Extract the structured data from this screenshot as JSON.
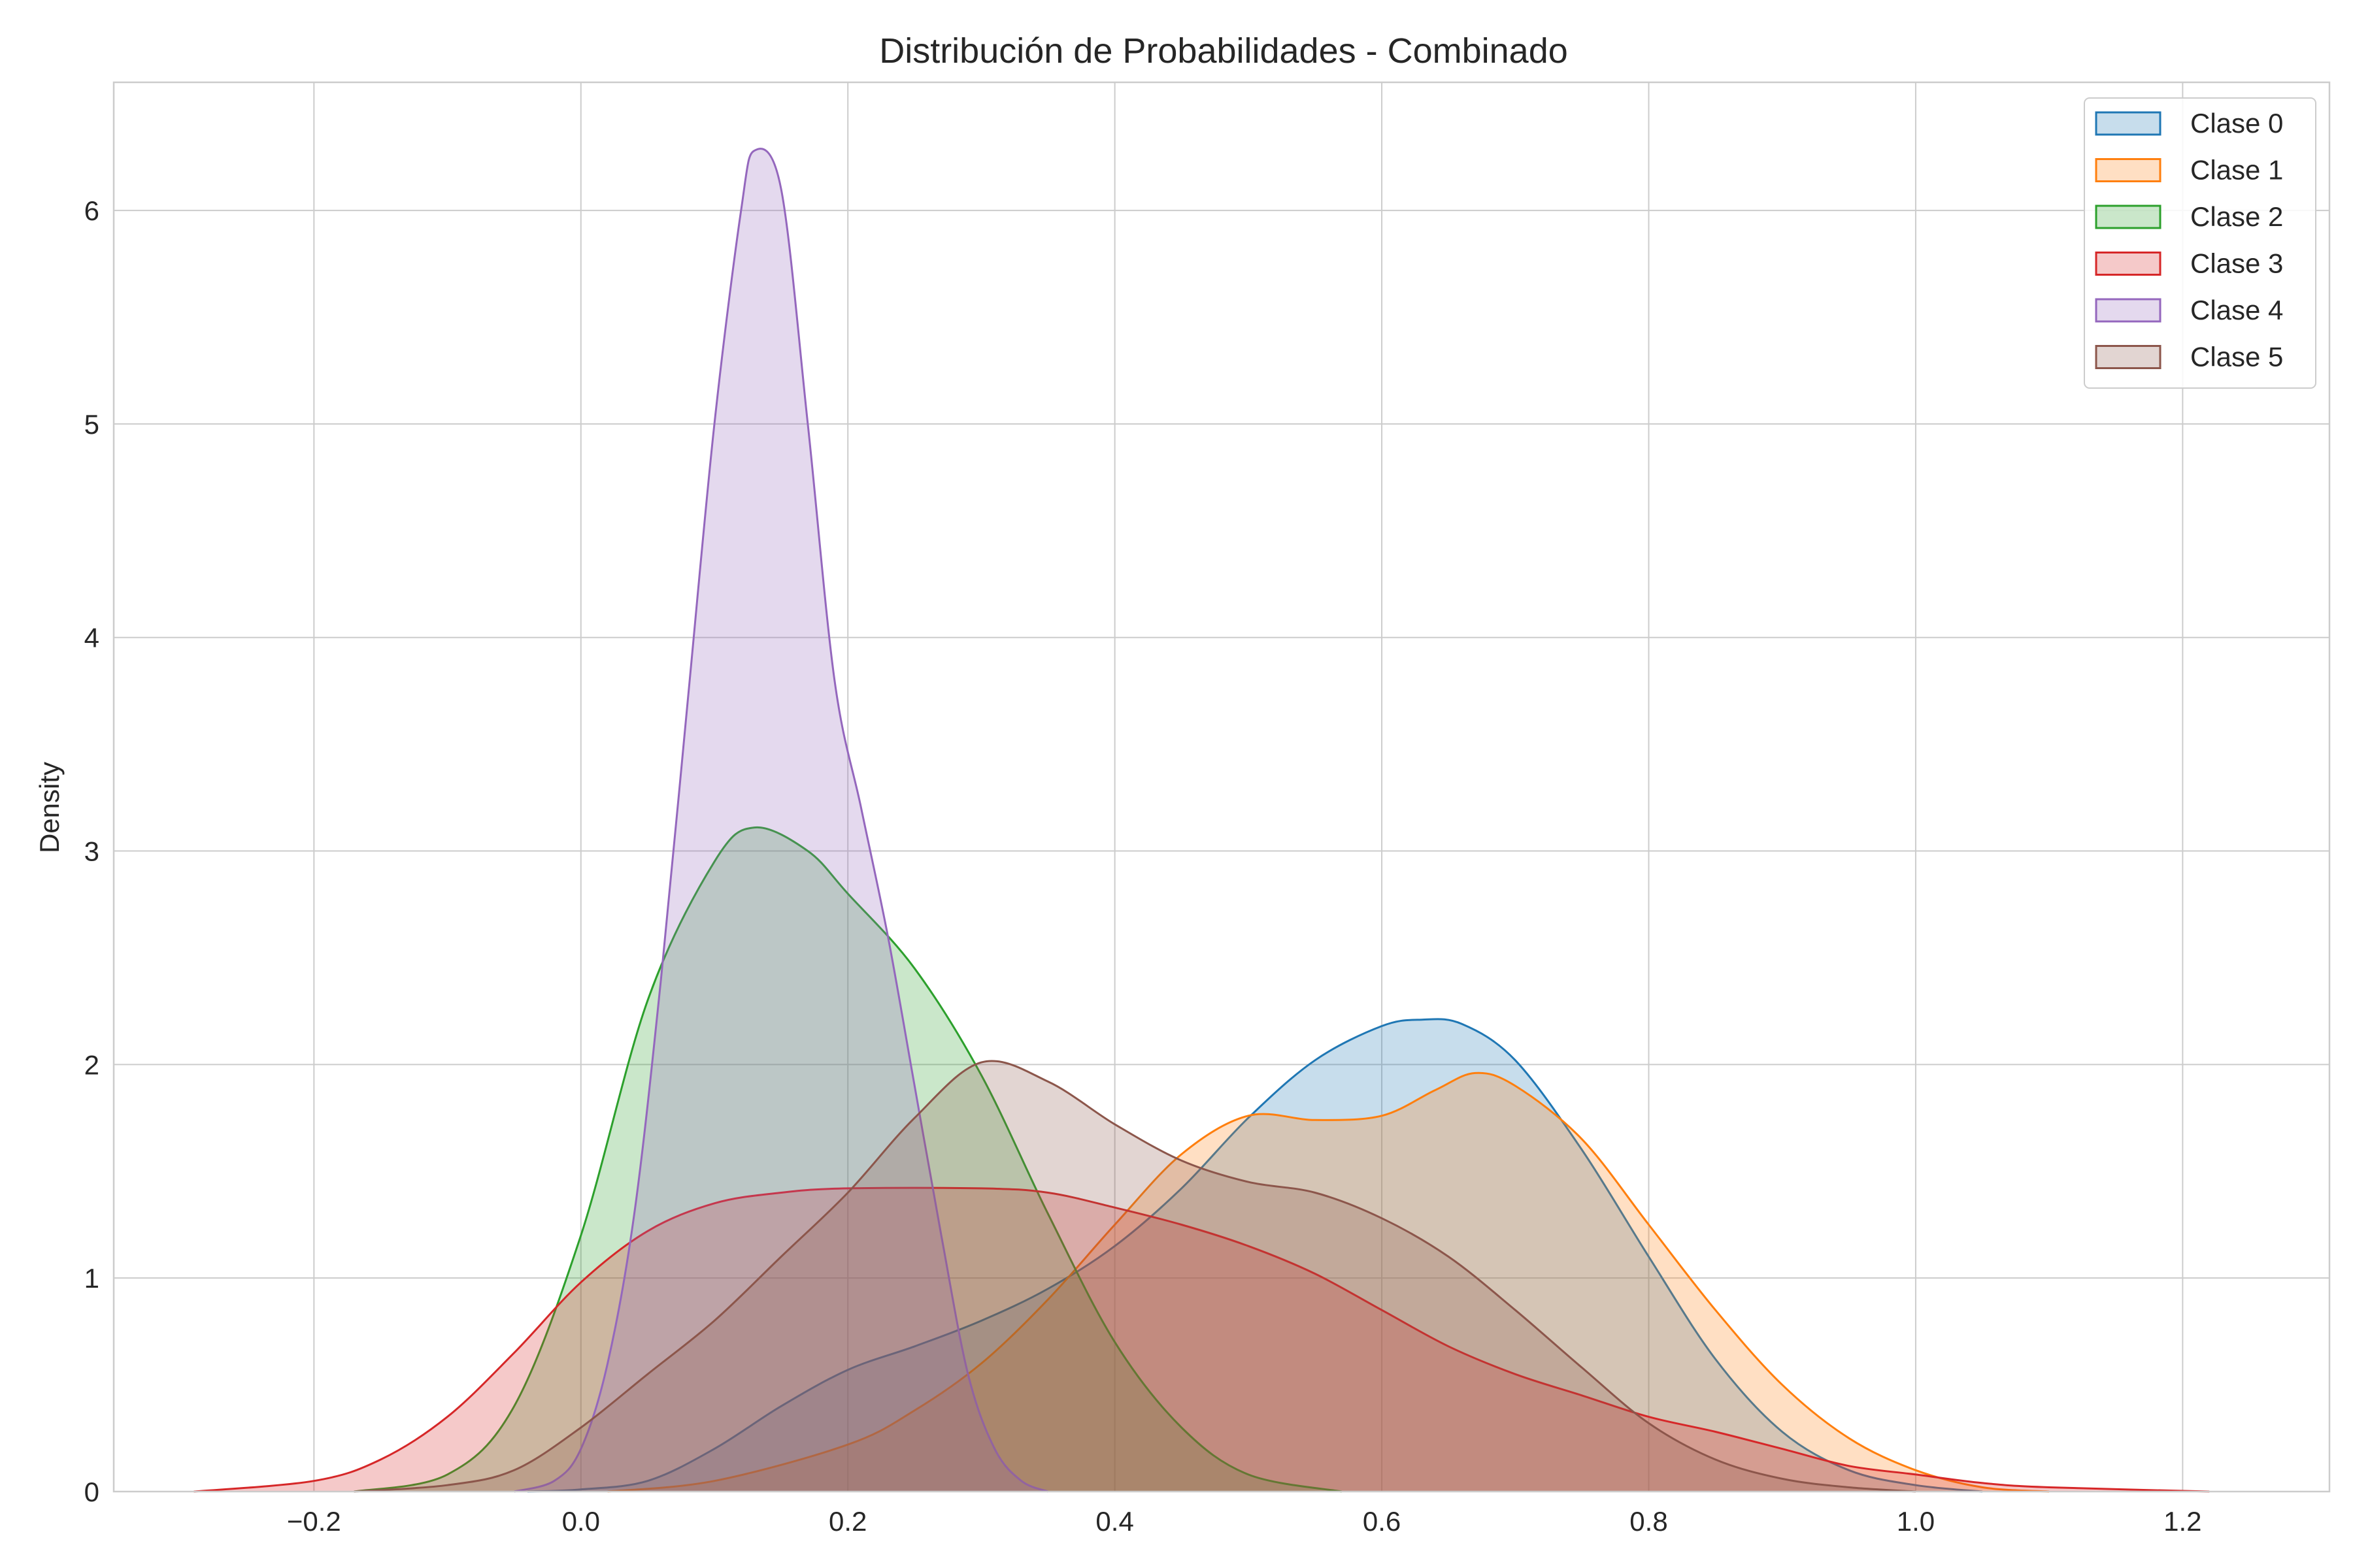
{
  "chart_data": {
    "type": "area",
    "title": "Distribución de Probabilidades - Combinado",
    "xlabel": "",
    "ylabel": "Density",
    "xlim": [
      -0.35,
      1.31
    ],
    "ylim": [
      0,
      6.6
    ],
    "xticks": [
      -0.2,
      0.0,
      0.2,
      0.4,
      0.6,
      0.8,
      1.0,
      1.2
    ],
    "xtick_labels": [
      "−0.2",
      "0.0",
      "0.2",
      "0.4",
      "0.6",
      "0.8",
      "1.0",
      "1.2"
    ],
    "yticks": [
      0,
      1,
      2,
      3,
      4,
      5,
      6
    ],
    "ytick_labels": [
      "0",
      "1",
      "2",
      "3",
      "4",
      "5",
      "6"
    ],
    "grid": true,
    "legend_position": "top-right",
    "series": [
      {
        "name": "Clase 0",
        "color": "#1f77b4",
        "points": [
          [
            -0.04,
            0.0
          ],
          [
            0.0,
            0.01
          ],
          [
            0.05,
            0.05
          ],
          [
            0.1,
            0.2
          ],
          [
            0.15,
            0.4
          ],
          [
            0.2,
            0.57
          ],
          [
            0.25,
            0.68
          ],
          [
            0.3,
            0.8
          ],
          [
            0.35,
            0.95
          ],
          [
            0.4,
            1.15
          ],
          [
            0.45,
            1.42
          ],
          [
            0.5,
            1.75
          ],
          [
            0.55,
            2.02
          ],
          [
            0.6,
            2.18
          ],
          [
            0.63,
            2.21
          ],
          [
            0.66,
            2.19
          ],
          [
            0.7,
            2.02
          ],
          [
            0.75,
            1.6
          ],
          [
            0.8,
            1.1
          ],
          [
            0.85,
            0.62
          ],
          [
            0.9,
            0.28
          ],
          [
            0.95,
            0.1
          ],
          [
            1.0,
            0.03
          ],
          [
            1.05,
            0.0
          ]
        ]
      },
      {
        "name": "Clase 1",
        "color": "#ff7f0e",
        "points": [
          [
            0.02,
            0.0
          ],
          [
            0.1,
            0.05
          ],
          [
            0.2,
            0.22
          ],
          [
            0.25,
            0.38
          ],
          [
            0.3,
            0.6
          ],
          [
            0.35,
            0.9
          ],
          [
            0.4,
            1.25
          ],
          [
            0.45,
            1.58
          ],
          [
            0.5,
            1.76
          ],
          [
            0.55,
            1.74
          ],
          [
            0.6,
            1.76
          ],
          [
            0.64,
            1.88
          ],
          [
            0.67,
            1.96
          ],
          [
            0.7,
            1.9
          ],
          [
            0.75,
            1.65
          ],
          [
            0.8,
            1.25
          ],
          [
            0.85,
            0.85
          ],
          [
            0.9,
            0.5
          ],
          [
            0.95,
            0.25
          ],
          [
            1.0,
            0.1
          ],
          [
            1.05,
            0.02
          ],
          [
            1.1,
            0.0
          ]
        ]
      },
      {
        "name": "Clase 2",
        "color": "#2ca02c",
        "points": [
          [
            -0.17,
            0.0
          ],
          [
            -0.1,
            0.08
          ],
          [
            -0.05,
            0.4
          ],
          [
            0.0,
            1.2
          ],
          [
            0.05,
            2.3
          ],
          [
            0.1,
            2.95
          ],
          [
            0.13,
            3.11
          ],
          [
            0.17,
            3.0
          ],
          [
            0.2,
            2.8
          ],
          [
            0.25,
            2.45
          ],
          [
            0.3,
            1.95
          ],
          [
            0.35,
            1.3
          ],
          [
            0.4,
            0.7
          ],
          [
            0.45,
            0.3
          ],
          [
            0.5,
            0.08
          ],
          [
            0.57,
            0.0
          ]
        ]
      },
      {
        "name": "Clase 3",
        "color": "#d62728",
        "points": [
          [
            -0.29,
            0.0
          ],
          [
            -0.2,
            0.05
          ],
          [
            -0.15,
            0.15
          ],
          [
            -0.1,
            0.35
          ],
          [
            -0.05,
            0.65
          ],
          [
            0.0,
            0.98
          ],
          [
            0.05,
            1.22
          ],
          [
            0.1,
            1.35
          ],
          [
            0.15,
            1.4
          ],
          [
            0.2,
            1.42
          ],
          [
            0.3,
            1.42
          ],
          [
            0.35,
            1.4
          ],
          [
            0.4,
            1.33
          ],
          [
            0.45,
            1.25
          ],
          [
            0.5,
            1.15
          ],
          [
            0.55,
            1.02
          ],
          [
            0.6,
            0.85
          ],
          [
            0.65,
            0.68
          ],
          [
            0.7,
            0.55
          ],
          [
            0.75,
            0.45
          ],
          [
            0.8,
            0.35
          ],
          [
            0.85,
            0.28
          ],
          [
            0.9,
            0.2
          ],
          [
            0.95,
            0.12
          ],
          [
            1.0,
            0.08
          ],
          [
            1.05,
            0.04
          ],
          [
            1.1,
            0.02
          ],
          [
            1.22,
            0.0
          ]
        ]
      },
      {
        "name": "Clase 4",
        "color": "#9467bd",
        "points": [
          [
            -0.05,
            0.0
          ],
          [
            -0.02,
            0.05
          ],
          [
            0.0,
            0.2
          ],
          [
            0.02,
            0.6
          ],
          [
            0.04,
            1.3
          ],
          [
            0.06,
            2.4
          ],
          [
            0.08,
            3.7
          ],
          [
            0.1,
            5.0
          ],
          [
            0.12,
            6.0
          ],
          [
            0.13,
            6.28
          ],
          [
            0.15,
            6.1
          ],
          [
            0.17,
            5.0
          ],
          [
            0.19,
            3.8
          ],
          [
            0.21,
            3.2
          ],
          [
            0.23,
            2.6
          ],
          [
            0.25,
            1.9
          ],
          [
            0.27,
            1.2
          ],
          [
            0.29,
            0.55
          ],
          [
            0.31,
            0.2
          ],
          [
            0.33,
            0.05
          ],
          [
            0.35,
            0.0
          ]
        ]
      },
      {
        "name": "Clase 5",
        "color": "#8c564b",
        "points": [
          [
            -0.17,
            0.0
          ],
          [
            -0.1,
            0.03
          ],
          [
            -0.05,
            0.1
          ],
          [
            0.0,
            0.3
          ],
          [
            0.05,
            0.55
          ],
          [
            0.1,
            0.8
          ],
          [
            0.15,
            1.1
          ],
          [
            0.2,
            1.4
          ],
          [
            0.25,
            1.75
          ],
          [
            0.3,
            2.01
          ],
          [
            0.35,
            1.92
          ],
          [
            0.4,
            1.72
          ],
          [
            0.45,
            1.55
          ],
          [
            0.5,
            1.45
          ],
          [
            0.55,
            1.4
          ],
          [
            0.6,
            1.28
          ],
          [
            0.65,
            1.1
          ],
          [
            0.7,
            0.85
          ],
          [
            0.75,
            0.58
          ],
          [
            0.8,
            0.32
          ],
          [
            0.85,
            0.15
          ],
          [
            0.9,
            0.06
          ],
          [
            0.95,
            0.02
          ],
          [
            1.0,
            0.0
          ]
        ]
      }
    ]
  }
}
